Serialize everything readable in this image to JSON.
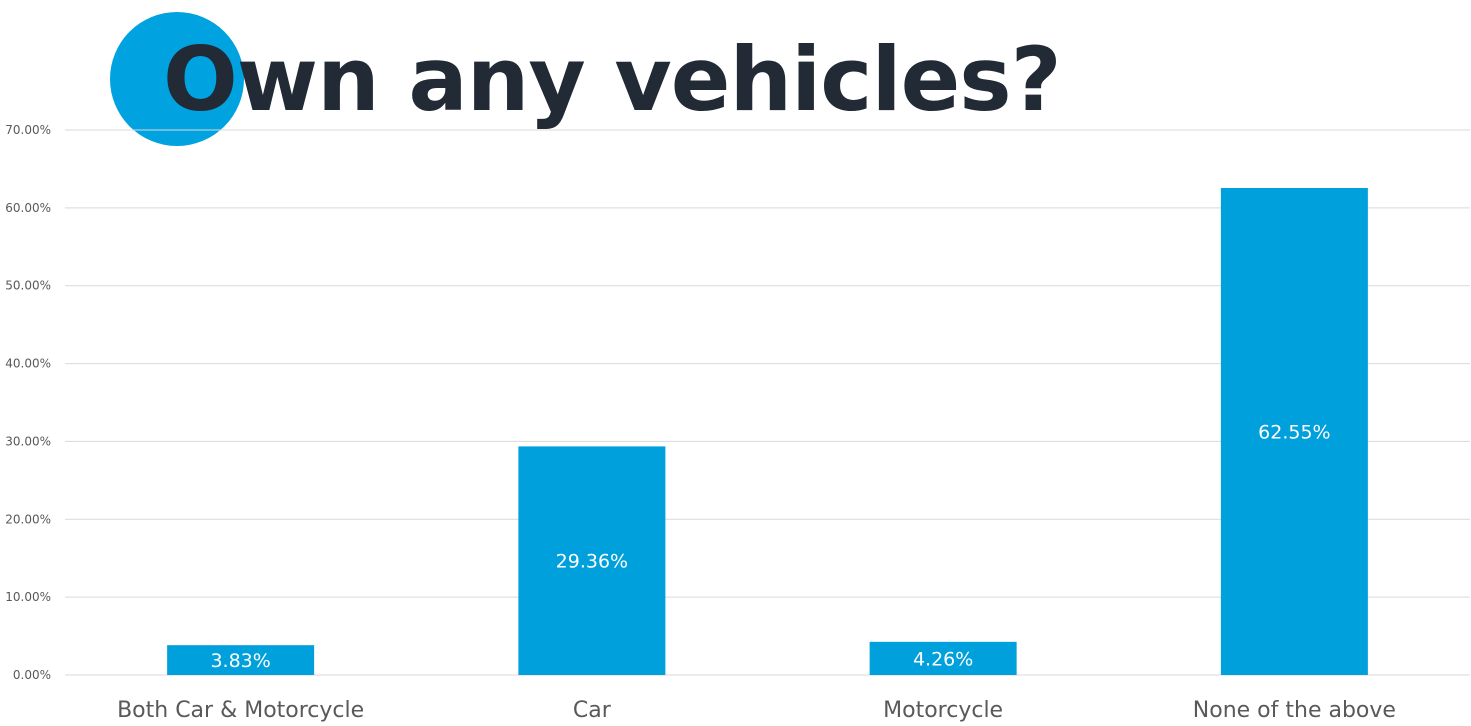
{
  "chart_data": {
    "type": "bar",
    "title": "Own any vehicles?",
    "categories": [
      "Both Car & Motorcycle",
      "Car",
      "Motorcycle",
      "None of the above"
    ],
    "values": [
      3.83,
      29.36,
      4.26,
      62.55
    ],
    "value_labels": [
      "3.83%",
      "29.36%",
      "4.26%",
      "62.55%"
    ],
    "y_ticks": [
      "0.00%",
      "10.00%",
      "20.00%",
      "30.00%",
      "40.00%",
      "50.00%",
      "60.00%",
      "70.00%"
    ],
    "ylim": [
      0,
      70
    ],
    "ystep": 10,
    "xlabel": "",
    "ylabel": "",
    "grid": true,
    "legend": "none",
    "colors": {
      "bar": "#00a0dc",
      "accent_circle": "#00a3e0",
      "title": "#222a35",
      "grid": "#d9d9d9",
      "axis_text": "#595959",
      "data_label": "#ffffff"
    }
  }
}
